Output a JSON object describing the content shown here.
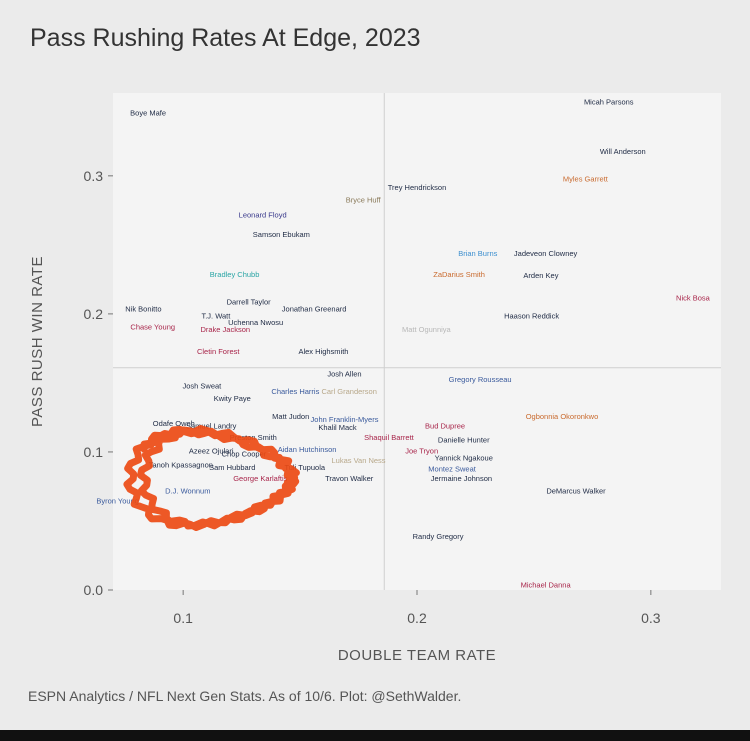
{
  "title": "Pass Rushing Rates At Edge, 2023",
  "caption": "ESPN Analytics / NFL Next Gen Stats. As of 10/6. Plot: @SethWalder.",
  "colors": {
    "background": "#ebebeb",
    "panel": "#f4f4f4",
    "annotation": "#ec4a14"
  },
  "chart_data": {
    "type": "scatter",
    "title": "Pass Rushing Rates At Edge, 2023",
    "xlabel": "DOUBLE TEAM RATE",
    "ylabel": "PASS RUSH WIN RATE",
    "xlim": [
      0.07,
      0.33
    ],
    "ylim": [
      0.0,
      0.36
    ],
    "xticks": [
      0.1,
      0.2,
      0.3
    ],
    "xtick_labels": [
      "0.1",
      "0.2",
      "0.3"
    ],
    "yticks": [
      0.0,
      0.1,
      0.2,
      0.3
    ],
    "ytick_labels": [
      "0.0",
      "0.1",
      "0.2",
      "0.3"
    ],
    "grid": false,
    "reference_lines": {
      "x": 0.186,
      "y": 0.161
    },
    "points": [
      {
        "label": "Micah Parsons",
        "x": 0.282,
        "y": 0.354,
        "color": "#1e2a44"
      },
      {
        "label": "Boye Mafe",
        "x": 0.085,
        "y": 0.346,
        "color": "#1e2a44"
      },
      {
        "label": "Will Anderson",
        "x": 0.288,
        "y": 0.318,
        "color": "#1e2a44"
      },
      {
        "label": "Myles Garrett",
        "x": 0.272,
        "y": 0.298,
        "color": "#c96a2e"
      },
      {
        "label": "Trey Hendrickson",
        "x": 0.2,
        "y": 0.292,
        "color": "#1e2a44"
      },
      {
        "label": "Bryce Huff",
        "x": 0.177,
        "y": 0.283,
        "color": "#8a7a5a"
      },
      {
        "label": "Leonard Floyd",
        "x": 0.134,
        "y": 0.272,
        "color": "#3a3a8c"
      },
      {
        "label": "Samson Ebukam",
        "x": 0.142,
        "y": 0.258,
        "color": "#1e2a44"
      },
      {
        "label": "Brian Burns",
        "x": 0.226,
        "y": 0.244,
        "color": "#3d8fcf"
      },
      {
        "label": "Jadeveon Clowney",
        "x": 0.255,
        "y": 0.244,
        "color": "#1e2a44"
      },
      {
        "label": "Bradley Chubb",
        "x": 0.122,
        "y": 0.229,
        "color": "#2aa5a5"
      },
      {
        "label": "ZaDarius Smith",
        "x": 0.218,
        "y": 0.229,
        "color": "#c96a2e"
      },
      {
        "label": "Arden Key",
        "x": 0.253,
        "y": 0.228,
        "color": "#1e2a44"
      },
      {
        "label": "Nick Bosa",
        "x": 0.318,
        "y": 0.212,
        "color": "#a8254a"
      },
      {
        "label": "Darrell Taylor",
        "x": 0.128,
        "y": 0.209,
        "color": "#1e2a44"
      },
      {
        "label": "Nik Bonitto",
        "x": 0.083,
        "y": 0.204,
        "color": "#1e2a44"
      },
      {
        "label": "Jonathan Greenard",
        "x": 0.156,
        "y": 0.204,
        "color": "#1e2a44"
      },
      {
        "label": "T.J. Watt",
        "x": 0.114,
        "y": 0.199,
        "color": "#1e2a44"
      },
      {
        "label": "Haason Reddick",
        "x": 0.249,
        "y": 0.199,
        "color": "#1e2a44"
      },
      {
        "label": "Uchenna Nwosu",
        "x": 0.131,
        "y": 0.194,
        "color": "#1e2a44"
      },
      {
        "label": "Chase Young",
        "x": 0.087,
        "y": 0.191,
        "color": "#a8254a"
      },
      {
        "label": "Drake Jackson",
        "x": 0.118,
        "y": 0.189,
        "color": "#a8254a"
      },
      {
        "label": "Matt Ogunniya",
        "x": 0.204,
        "y": 0.189,
        "color": "#b8b8b8"
      },
      {
        "label": "Cletin Forest",
        "x": 0.115,
        "y": 0.173,
        "color": "#a8254a"
      },
      {
        "label": "Alex Highsmith",
        "x": 0.16,
        "y": 0.173,
        "color": "#1e2a44"
      },
      {
        "label": "Josh Allen",
        "x": 0.169,
        "y": 0.157,
        "color": "#1e2a44"
      },
      {
        "label": "Gregory Rousseau",
        "x": 0.227,
        "y": 0.153,
        "color": "#3a5a9c"
      },
      {
        "label": "Josh Sweat",
        "x": 0.108,
        "y": 0.148,
        "color": "#1e2a44"
      },
      {
        "label": "Charles Harris",
        "x": 0.148,
        "y": 0.144,
        "color": "#3a5a9c"
      },
      {
        "label": "Carl Granderson",
        "x": 0.171,
        "y": 0.144,
        "color": "#b8a88a"
      },
      {
        "label": "Kwity Paye",
        "x": 0.121,
        "y": 0.139,
        "color": "#1e2a44"
      },
      {
        "label": "Matt Judon",
        "x": 0.146,
        "y": 0.126,
        "color": "#1e2a44"
      },
      {
        "label": "John Franklin-Myers",
        "x": 0.169,
        "y": 0.124,
        "color": "#3a5a9c"
      },
      {
        "label": "Odafe Oweh",
        "x": 0.096,
        "y": 0.121,
        "color": "#1e2a44"
      },
      {
        "label": "Samuel Landry",
        "x": 0.112,
        "y": 0.119,
        "color": "#1e2a44"
      },
      {
        "label": "Khalil Mack",
        "x": 0.166,
        "y": 0.118,
        "color": "#1e2a44"
      },
      {
        "label": "Bud Dupree",
        "x": 0.212,
        "y": 0.119,
        "color": "#a8254a"
      },
      {
        "label": "Ogbonnia Okoronkwo",
        "x": 0.262,
        "y": 0.126,
        "color": "#c96a2e"
      },
      {
        "label": "Preston Smith",
        "x": 0.13,
        "y": 0.111,
        "color": "#1e2a44"
      },
      {
        "label": "Shaquil Barrett",
        "x": 0.188,
        "y": 0.111,
        "color": "#a8254a"
      },
      {
        "label": "Danielle Hunter",
        "x": 0.22,
        "y": 0.109,
        "color": "#1e2a44"
      },
      {
        "label": "Azeez Ojulari",
        "x": 0.112,
        "y": 0.101,
        "color": "#1e2a44"
      },
      {
        "label": "Aidan Hutchinson",
        "x": 0.153,
        "y": 0.102,
        "color": "#3a5a9c"
      },
      {
        "label": "Joe Tryon",
        "x": 0.202,
        "y": 0.101,
        "color": "#a8254a"
      },
      {
        "label": "Chop Cooper",
        "x": 0.126,
        "y": 0.099,
        "color": "#1e2a44"
      },
      {
        "label": "Yannick Ngakoue",
        "x": 0.22,
        "y": 0.096,
        "color": "#1e2a44"
      },
      {
        "label": "Lukas Van Ness",
        "x": 0.175,
        "y": 0.094,
        "color": "#b8a88a"
      },
      {
        "label": "Tanoh Kpassagnon",
        "x": 0.099,
        "y": 0.091,
        "color": "#1e2a44"
      },
      {
        "label": "Sam Hubbard",
        "x": 0.121,
        "y": 0.089,
        "color": "#1e2a44"
      },
      {
        "label": "Tuli Tupuola",
        "x": 0.152,
        "y": 0.089,
        "color": "#1e2a44"
      },
      {
        "label": "Montez Sweat",
        "x": 0.215,
        "y": 0.088,
        "color": "#3a5a9c"
      },
      {
        "label": "George Karlaftis",
        "x": 0.133,
        "y": 0.081,
        "color": "#a8254a"
      },
      {
        "label": "Travon Walker",
        "x": 0.171,
        "y": 0.081,
        "color": "#1e2a44"
      },
      {
        "label": "Jermaine Johnson",
        "x": 0.219,
        "y": 0.081,
        "color": "#1e2a44"
      },
      {
        "label": "D.J. Wonnum",
        "x": 0.102,
        "y": 0.072,
        "color": "#3a5a9c"
      },
      {
        "label": "DeMarcus Walker",
        "x": 0.268,
        "y": 0.072,
        "color": "#1e2a44"
      },
      {
        "label": "Byron Young",
        "x": 0.072,
        "y": 0.065,
        "color": "#3a5a9c"
      },
      {
        "label": "Randy Gregory",
        "x": 0.209,
        "y": 0.039,
        "color": "#1e2a44"
      },
      {
        "label": "Michael Danna",
        "x": 0.255,
        "y": 0.004,
        "color": "#a8254a"
      }
    ]
  }
}
